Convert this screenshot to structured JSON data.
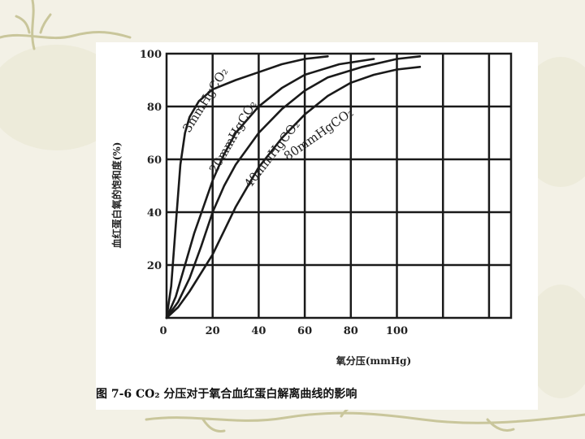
{
  "chart_data": {
    "type": "line",
    "title": "",
    "xlabel": "氧分压(mmHg)",
    "ylabel": "血红蛋白氧的饱和度(%)",
    "xlim": [
      0,
      120
    ],
    "ylim": [
      0,
      100
    ],
    "x_ticks": [
      "0",
      "20",
      "40",
      "60",
      "80",
      "100"
    ],
    "y_ticks": [
      "20",
      "40",
      "60",
      "80",
      "100"
    ],
    "grid": true,
    "caption": "图 7-6   CO₂ 分压对于氧合血红蛋白解离曲线的影响",
    "series": [
      {
        "name": "3mmHgCO₂",
        "x": [
          0,
          2,
          4,
          6,
          8,
          10,
          14,
          20,
          30,
          40,
          50,
          60,
          70
        ],
        "y": [
          0,
          12,
          35,
          58,
          70,
          76,
          82,
          86.5,
          90,
          93,
          96,
          98,
          99
        ]
      },
      {
        "name": "20mmHgCO₂",
        "x": [
          0,
          4,
          8,
          12,
          16,
          20,
          25,
          30,
          40,
          50,
          60,
          75,
          90
        ],
        "y": [
          0,
          8,
          20,
          32,
          42,
          52,
          62,
          70,
          80,
          87,
          92,
          96,
          98
        ]
      },
      {
        "name": "40mmHgCO₂",
        "x": [
          0,
          5,
          10,
          15,
          20,
          25,
          30,
          40,
          50,
          60,
          70,
          85,
          100,
          110
        ],
        "y": [
          0,
          6,
          15,
          27,
          40,
          50,
          58,
          70,
          79,
          86,
          91,
          95,
          98,
          99
        ]
      },
      {
        "name": "80mmHgCO₂",
        "x": [
          0,
          5,
          10,
          15,
          20,
          25,
          30,
          40,
          50,
          60,
          70,
          80,
          90,
          100,
          110
        ],
        "y": [
          0,
          4,
          10,
          17,
          24,
          33,
          42,
          57,
          68,
          77,
          84,
          89,
          92,
          94,
          95
        ]
      }
    ]
  }
}
